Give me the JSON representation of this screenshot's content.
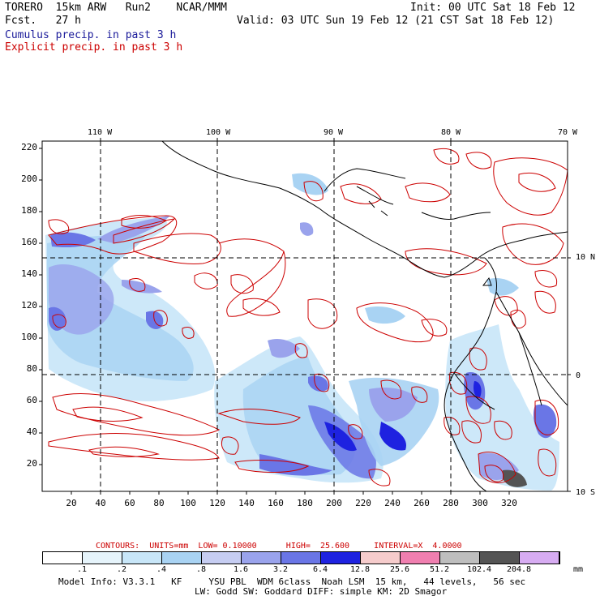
{
  "header": {
    "model": "TORERO  15km ARW   Run2    NCAR/MMM",
    "init": "Init: 00 UTC Sat 18 Feb 12",
    "fcst": "Fcst.   27 h",
    "valid": "Valid: 03 UTC Sun 19 Feb 12 (21 CST Sat 18 Feb 12)"
  },
  "legend": {
    "cumulus": "Cumulus precip. in past 3 h",
    "explicit": "Explicit precip. in past 3 h"
  },
  "axes": {
    "lon_labels": [
      "110 W",
      "100 W",
      "90 W",
      "80 W",
      "70 W"
    ],
    "lat_labels": [
      "10 N",
      "0",
      "10 S"
    ],
    "y_ticks": [
      "220",
      "200",
      "180",
      "160",
      "140",
      "120",
      "100",
      "80",
      "60",
      "40",
      "20"
    ],
    "x_ticks": [
      "20",
      "40",
      "60",
      "80",
      "100",
      "120",
      "140",
      "160",
      "180",
      "200",
      "220",
      "240",
      "260",
      "280",
      "300",
      "320"
    ]
  },
  "contours_label": "CONTOURS:  UNITS=mm  LOW= 0.10000      HIGH=  25.600     INTERVAL=X  4.0000",
  "colorbar": {
    "colors": [
      "#ffffff",
      "#e6f4fb",
      "#c8e6f8",
      "#a9d3f3",
      "#c6cdf2",
      "#9aa3ec",
      "#6a76e6",
      "#1e22e0",
      "#f6cccc",
      "#f07fb0",
      "#bebebe",
      "#545454",
      "#d7acf2"
    ],
    "labels": [
      ".1",
      ".2",
      ".4",
      ".8",
      "1.6",
      "3.2",
      "6.4",
      "12.8",
      "25.6",
      "51.2",
      "102.4",
      "204.8"
    ],
    "unit": "mm"
  },
  "model_info": {
    "line1": "Model Info: V3.3.1   KF     YSU PBL  WDM 6class  Noah LSM  15 km,   44 levels,   56 sec",
    "line2": "LW: Godd SW: Goddard DIFF: simple KM: 2D Smagor"
  },
  "colors": {
    "explicit_contour": "#cc0000",
    "cumulus_text": "#1a1a9a",
    "coastline": "#000000"
  }
}
